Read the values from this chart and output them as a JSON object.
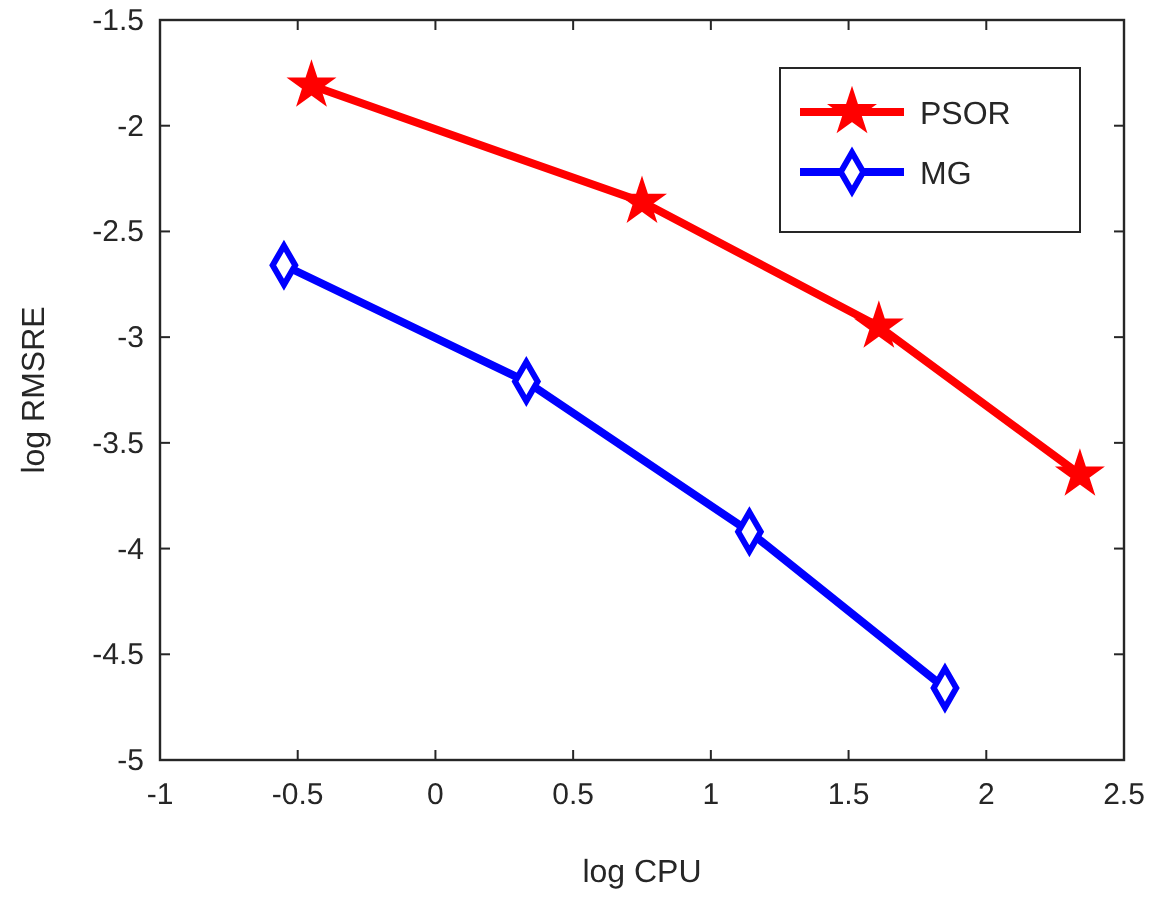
{
  "chart_data": {
    "type": "line",
    "xlabel": "log CPU",
    "ylabel": "log RMSRE",
    "xlim": [
      -1,
      2.5
    ],
    "xticks": [
      -1,
      -0.5,
      0,
      0.5,
      1,
      1.5,
      2,
      2.5
    ],
    "ylim": [
      -5,
      -1.5
    ],
    "yticks": [
      -5,
      -4.5,
      -4,
      -3.5,
      -3,
      -2.5,
      -2,
      -1.5
    ],
    "legend": "top right",
    "grid": false,
    "line_style": "solid",
    "series": [
      {
        "name": "PSOR",
        "color": "#ff0000",
        "marker": "star",
        "x": [
          -0.45,
          0.75,
          1.61,
          2.34
        ],
        "values": [
          -1.81,
          -2.36,
          -2.95,
          -3.65
        ]
      },
      {
        "name": "MG",
        "color": "#0000ff",
        "marker": "diamond",
        "x": [
          -0.55,
          0.33,
          1.14,
          1.85
        ],
        "values": [
          -2.66,
          -3.21,
          -3.92,
          -4.66
        ]
      }
    ]
  }
}
